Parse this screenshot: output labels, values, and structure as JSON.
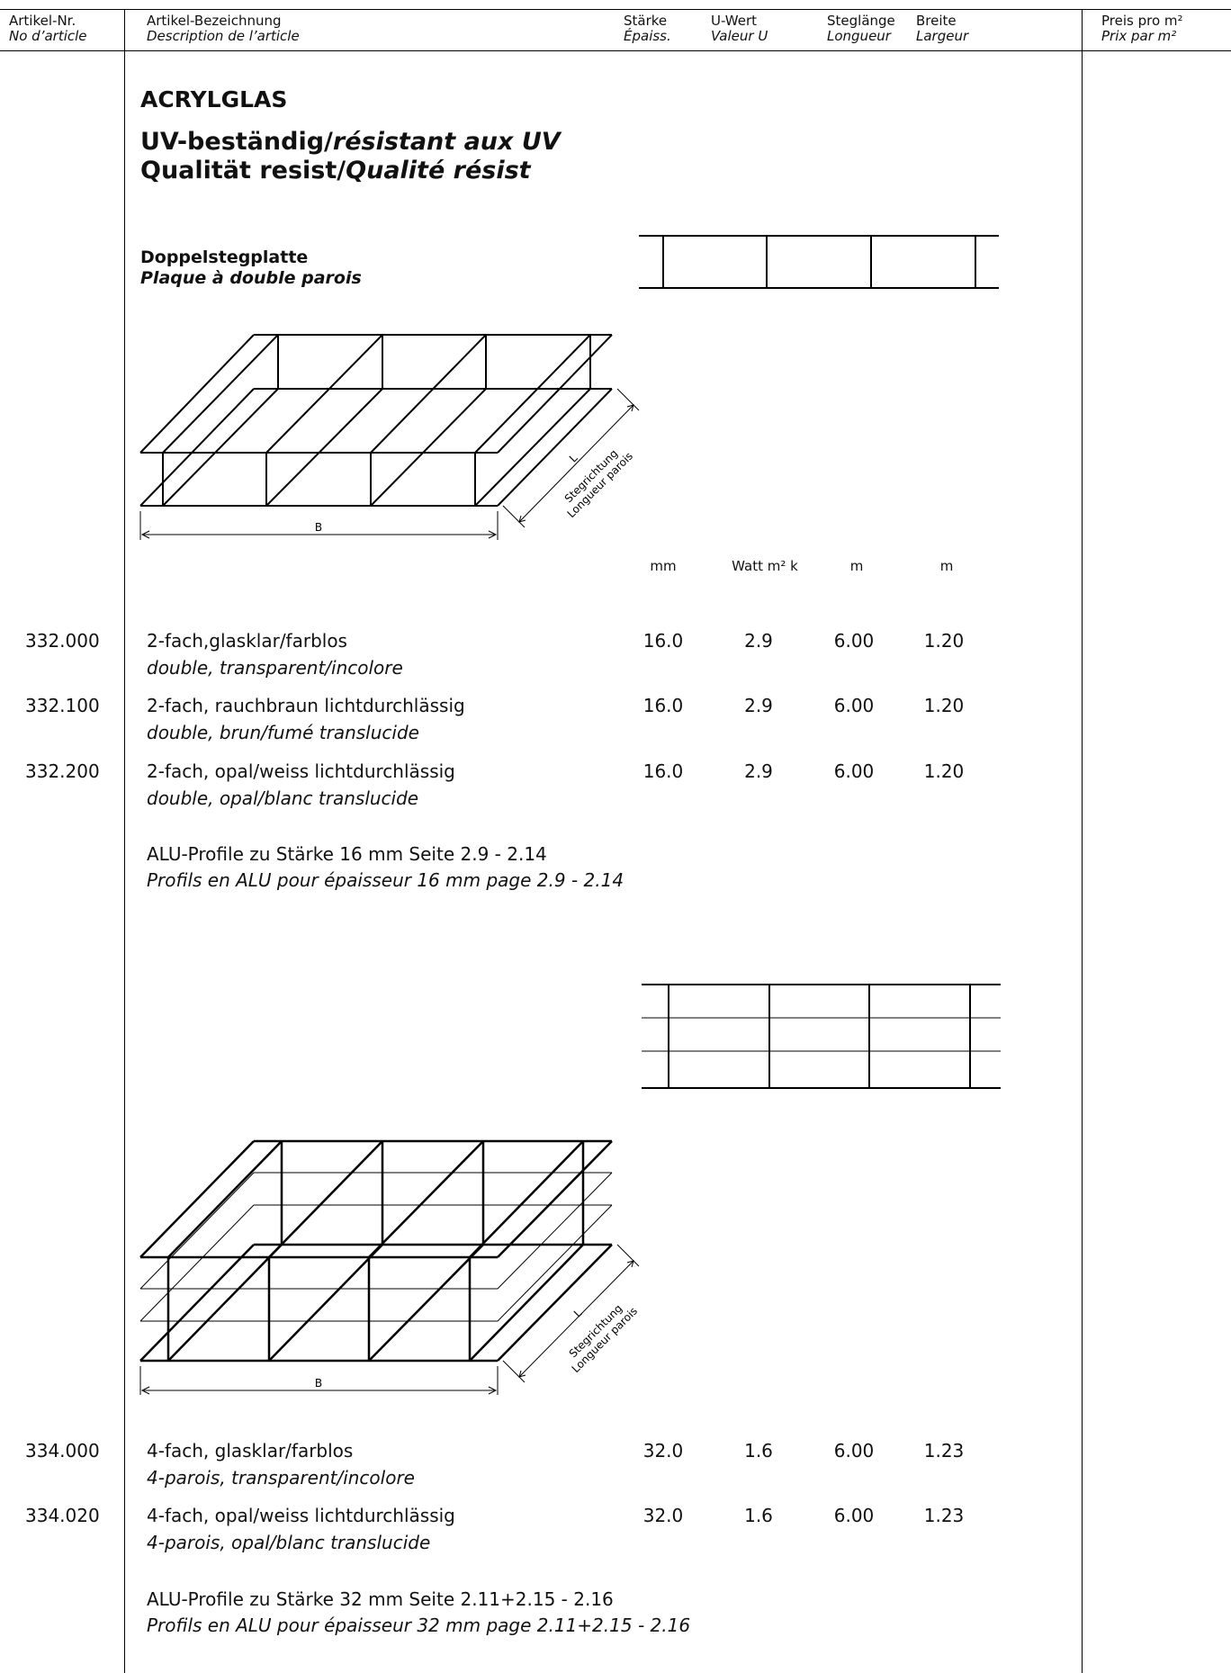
{
  "header": {
    "col_artnr": {
      "de": "Artikel-Nr.",
      "fr": "No d’article"
    },
    "col_desc": {
      "de": "Artikel-Bezeichnung",
      "fr": "Description de l’article"
    },
    "col_thick": {
      "de": "Stärke",
      "fr": "Épaiss."
    },
    "col_uvalue": {
      "de": "U-Wert",
      "fr": "Valeur U"
    },
    "col_length": {
      "de": "Steglänge",
      "fr": "Longueur"
    },
    "col_width": {
      "de": "Breite",
      "fr": "Largeur"
    },
    "col_price": {
      "de": "Preis pro m²",
      "fr": "Prix par m²"
    }
  },
  "title": "ACRYLGLAS",
  "subtitle1": {
    "de": "UV-beständig/",
    "fr": "résistant aux UV"
  },
  "subtitle2": {
    "de": "Qualität resist/",
    "fr": "Qualité résist"
  },
  "product": {
    "de": "Doppelstegplatte",
    "fr": "Plaque à double parois"
  },
  "diagram_labels": {
    "width": "B",
    "length": "L",
    "dir_de": "Stegrichtung",
    "dir_fr": "Longueur parois"
  },
  "units": {
    "thick": "mm",
    "uvalue": "Watt m² k",
    "length": "m",
    "width": "m"
  },
  "section1": {
    "rows": [
      {
        "nr": "332.000",
        "de": "2-fach,glasklar/farblos",
        "fr": "double, transparent/incolore",
        "thick": "16.0",
        "u": "2.9",
        "len": "6.00",
        "wid": "1.20"
      },
      {
        "nr": "332.100",
        "de": "2-fach, rauchbraun lichtdurchlässig",
        "fr": "double, brun/fumé translucide",
        "thick": "16.0",
        "u": "2.9",
        "len": "6.00",
        "wid": "1.20"
      },
      {
        "nr": "332.200",
        "de": "2-fach, opal/weiss lichtdurchlässig",
        "fr": "double, opal/blanc translucide",
        "thick": "16.0",
        "u": "2.9",
        "len": "6.00",
        "wid": "1.20"
      }
    ],
    "note_de": "ALU-Profile zu Stärke 16 mm Seite 2.9 - 2.14",
    "note_fr": "Profils en ALU pour épaisseur 16 mm page 2.9 - 2.14"
  },
  "section2": {
    "rows": [
      {
        "nr": "334.000",
        "de": "4-fach, glasklar/farblos",
        "fr": "4-parois, transparent/incolore",
        "thick": "32.0",
        "u": "1.6",
        "len": "6.00",
        "wid": "1.23"
      },
      {
        "nr": "334.020",
        "de": "4-fach, opal/weiss lichtdurchlässig",
        "fr": "4-parois, opal/blanc translucide",
        "thick": "32.0",
        "u": "1.6",
        "len": "6.00",
        "wid": "1.23"
      }
    ],
    "note_de": "ALU-Profile zu Stärke 32 mm Seite 2.11+2.15 - 2.16",
    "note_fr": "Profils en ALU pour épaisseur 32 mm page 2.11+2.15 - 2.16"
  }
}
